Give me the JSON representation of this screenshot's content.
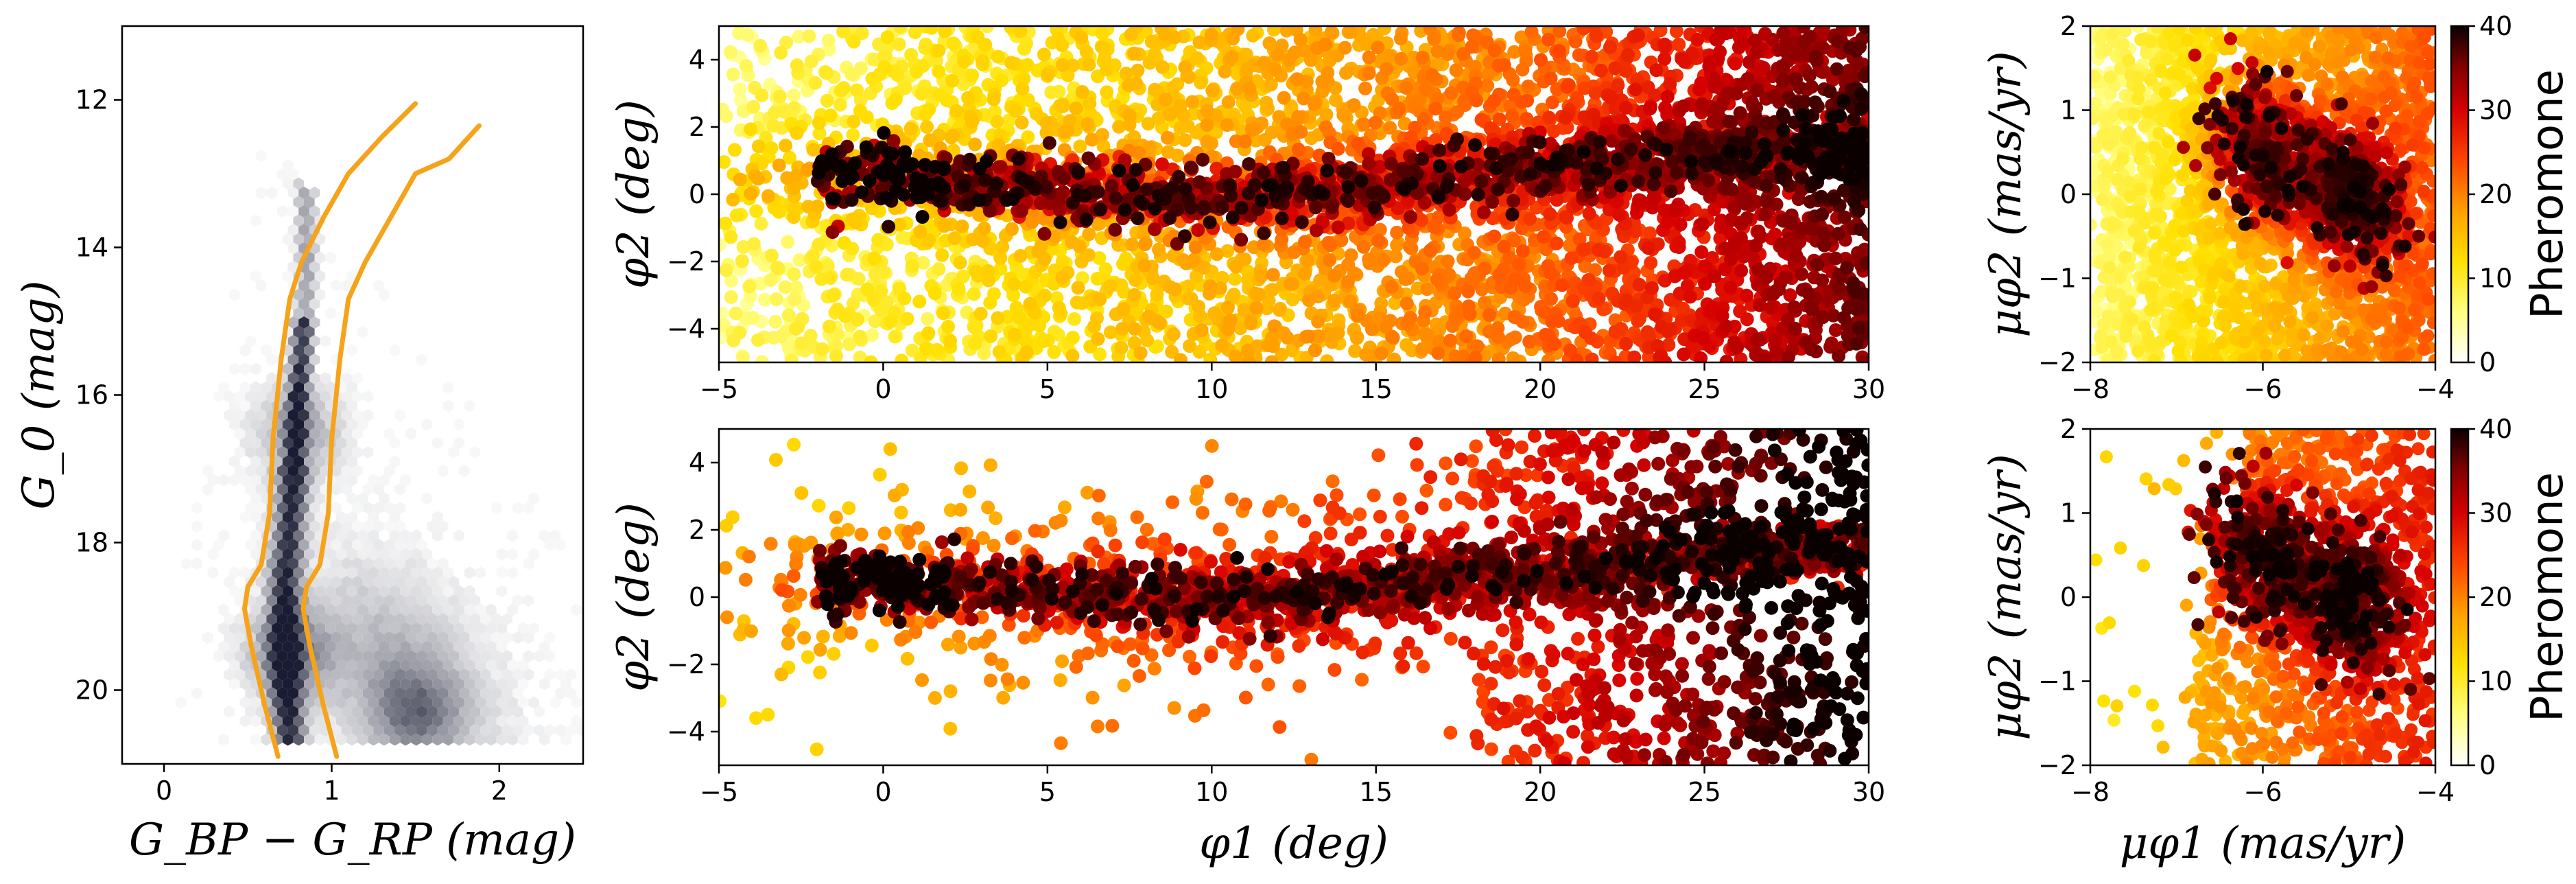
{
  "colorbar_label": "Pheromone",
  "chart_data": [
    {
      "id": "cmd",
      "type": "heatmap",
      "description": "colour-magnitude hexbin density with two isochrone boundary curves",
      "xlabel": "G_BP − G_RP (mag)",
      "ylabel": "G_0 (mag)",
      "xlim": [
        -0.25,
        2.5
      ],
      "ylim": [
        21.0,
        11.0
      ],
      "y_inverted": true,
      "xticks": [
        "0",
        "1",
        "2"
      ],
      "yticks": [
        "12",
        "14",
        "16",
        "18",
        "20"
      ],
      "colormap": "bone_r",
      "density_peaks": [
        {
          "x": 0.75,
          "y": 19.5,
          "weight": 1.0
        },
        {
          "x": 0.8,
          "y": 16.5,
          "weight": 0.8
        },
        {
          "x": 1.5,
          "y": 20.3,
          "weight": 0.8
        }
      ],
      "curves": [
        {
          "color": "#f5a31a",
          "x": [
            0.68,
            0.6,
            0.52,
            0.48,
            0.5,
            0.58,
            0.63,
            0.65,
            0.7,
            0.75,
            0.82,
            0.95,
            1.1,
            1.3,
            1.5
          ],
          "y": [
            20.9,
            20.2,
            19.4,
            18.9,
            18.6,
            18.3,
            17.6,
            16.6,
            15.5,
            14.7,
            14.2,
            13.6,
            13.0,
            12.5,
            12.05
          ]
        },
        {
          "color": "#f5a31a",
          "x": [
            1.03,
            0.95,
            0.87,
            0.83,
            0.85,
            0.93,
            0.98,
            1.0,
            1.05,
            1.1,
            1.2,
            1.35,
            1.5,
            1.7,
            1.88
          ],
          "y": [
            20.9,
            20.2,
            19.4,
            18.9,
            18.6,
            18.3,
            17.6,
            16.6,
            15.5,
            14.7,
            14.2,
            13.6,
            13.0,
            12.8,
            12.35
          ]
        }
      ]
    },
    {
      "id": "sky_all",
      "type": "scatter",
      "xlabel": "",
      "ylabel": "φ2 (deg)",
      "xlim": [
        -5,
        30
      ],
      "ylim": [
        -5,
        5
      ],
      "xticks": [
        "−5",
        "0",
        "5",
        "10",
        "15",
        "20",
        "25",
        "30"
      ],
      "yticks": [
        "−4",
        "−2",
        "0",
        "2",
        "4"
      ],
      "colormap": "hot_r",
      "color_range": [
        0,
        40
      ],
      "stream_track": {
        "x": [
          -1,
          5,
          10,
          15,
          20,
          25,
          30
        ],
        "y": [
          0.5,
          0.2,
          -0.1,
          0.3,
          0.8,
          1.2,
          1.5
        ]
      },
      "density_note": "stream peaks ~40; background rises from ~5 at φ1≈0 to ~30 at φ1≈28"
    },
    {
      "id": "pm_all",
      "type": "scatter",
      "xlabel": "",
      "ylabel": "μφ2 (mas/yr)",
      "xlim": [
        -8,
        -4
      ],
      "ylim": [
        -2,
        2
      ],
      "xticks": [
        "−8",
        "−6",
        "−4"
      ],
      "yticks": [
        "−2",
        "−1",
        "0",
        "1",
        "2"
      ],
      "colormap": "hot_r",
      "color_range": [
        0,
        40
      ],
      "clumps": [
        {
          "x": -6.0,
          "y": 0.5,
          "value": 40
        },
        {
          "x": -5.0,
          "y": 0.0,
          "value": 40
        }
      ],
      "colorbar": {
        "ticks": [
          "0",
          "10",
          "20",
          "30",
          "40"
        ],
        "label": "Pheromone"
      }
    },
    {
      "id": "sky_sel",
      "type": "scatter",
      "xlabel": "φ1 (deg)",
      "ylabel": "φ2 (deg)",
      "xlim": [
        -5,
        30
      ],
      "ylim": [
        -5,
        5
      ],
      "xticks": [
        "−5",
        "0",
        "5",
        "10",
        "15",
        "20",
        "25",
        "30"
      ],
      "yticks": [
        "−4",
        "−2",
        "0",
        "2",
        "4"
      ],
      "colormap": "hot_r",
      "color_range": [
        0,
        40
      ],
      "stream_track": {
        "x": [
          -1,
          5,
          10,
          15,
          20,
          25,
          30
        ],
        "y": [
          0.5,
          0.2,
          -0.1,
          0.3,
          0.8,
          1.2,
          1.5
        ]
      }
    },
    {
      "id": "pm_sel",
      "type": "scatter",
      "xlabel": "μφ1 (mas/yr)",
      "ylabel": "μφ2 (mas/yr)",
      "xlim": [
        -8,
        -4
      ],
      "ylim": [
        -2,
        2
      ],
      "xticks": [
        "−8",
        "−6",
        "−4"
      ],
      "yticks": [
        "−2",
        "−1",
        "0",
        "1",
        "2"
      ],
      "colormap": "hot_r",
      "color_range": [
        0,
        40
      ],
      "clumps": [
        {
          "x": -6.0,
          "y": 0.5,
          "value": 40
        },
        {
          "x": -5.0,
          "y": 0.0,
          "value": 40
        }
      ],
      "colorbar": {
        "ticks": [
          "0",
          "10",
          "20",
          "30",
          "40"
        ],
        "label": "Pheromone"
      }
    }
  ]
}
